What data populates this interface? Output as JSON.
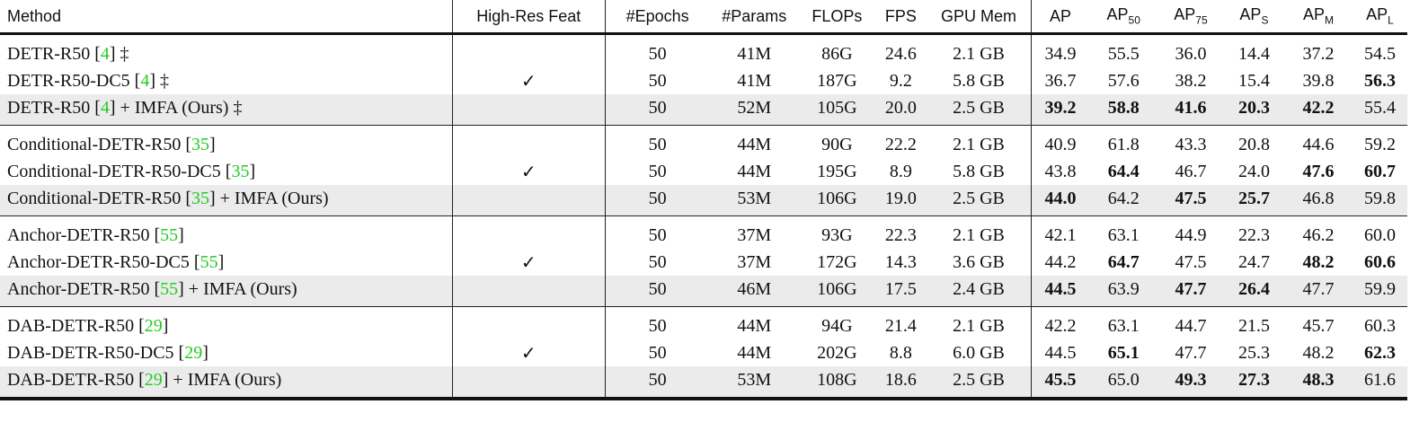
{
  "headers": [
    "Method",
    "High-Res Feat",
    "#Epochs",
    "#Params",
    "FLOPs",
    "FPS",
    "GPU Mem",
    "AP",
    [
      "AP",
      "50"
    ],
    [
      "AP",
      "75"
    ],
    [
      "AP",
      "S"
    ],
    [
      "AP",
      "M"
    ],
    [
      "AP",
      "L"
    ]
  ],
  "ref_color": "#22cc22",
  "groups": [
    [
      {
        "name": "DETR-R50 [",
        "ref": "4",
        "suffix": "] ‡",
        "highres": "",
        "shaded": false,
        "values": [
          "50",
          "41M",
          "86G",
          "24.6",
          "2.1 GB",
          "34.9",
          "55.5",
          "36.0",
          "14.4",
          "37.2",
          "54.5"
        ],
        "bold": []
      },
      {
        "name": "DETR-R50-DC5 [",
        "ref": "4",
        "suffix": "] ‡",
        "highres": "✓",
        "shaded": false,
        "values": [
          "50",
          "41M",
          "187G",
          "9.2",
          "5.8 GB",
          "36.7",
          "57.6",
          "38.2",
          "15.4",
          "39.8",
          "56.3"
        ],
        "bold": [
          10
        ]
      },
      {
        "name": "DETR-R50 [",
        "ref": "4",
        "suffix": "] + IMFA (Ours) ‡",
        "highres": "",
        "shaded": true,
        "values": [
          "50",
          "52M",
          "105G",
          "20.0",
          "2.5 GB",
          "39.2",
          "58.8",
          "41.6",
          "20.3",
          "42.2",
          "55.4"
        ],
        "bold": [
          5,
          6,
          7,
          8,
          9
        ]
      }
    ],
    [
      {
        "name": "Conditional-DETR-R50 [",
        "ref": "35",
        "suffix": "]",
        "highres": "",
        "shaded": false,
        "values": [
          "50",
          "44M",
          "90G",
          "22.2",
          "2.1 GB",
          "40.9",
          "61.8",
          "43.3",
          "20.8",
          "44.6",
          "59.2"
        ],
        "bold": []
      },
      {
        "name": "Conditional-DETR-R50-DC5 [",
        "ref": "35",
        "suffix": "]",
        "highres": "✓",
        "shaded": false,
        "values": [
          "50",
          "44M",
          "195G",
          "8.9",
          "5.8 GB",
          "43.8",
          "64.4",
          "46.7",
          "24.0",
          "47.6",
          "60.7"
        ],
        "bold": [
          6,
          9,
          10
        ]
      },
      {
        "name": "Conditional-DETR-R50  [",
        "ref": "35",
        "suffix": "] + IMFA (Ours)",
        "highres": "",
        "shaded": true,
        "values": [
          "50",
          "53M",
          "106G",
          "19.0",
          "2.5 GB",
          "44.0",
          "64.2",
          "47.5",
          "25.7",
          "46.8",
          "59.8"
        ],
        "bold": [
          5,
          7,
          8
        ]
      }
    ],
    [
      {
        "name": "Anchor-DETR-R50 [",
        "ref": "55",
        "suffix": "]",
        "highres": "",
        "shaded": false,
        "values": [
          "50",
          "37M",
          "93G",
          "22.3",
          "2.1 GB",
          "42.1",
          "63.1",
          "44.9",
          "22.3",
          "46.2",
          "60.0"
        ],
        "bold": []
      },
      {
        "name": "Anchor-DETR-R50-DC5 [",
        "ref": "55",
        "suffix": "]",
        "highres": "✓",
        "shaded": false,
        "values": [
          "50",
          "37M",
          "172G",
          "14.3",
          "3.6 GB",
          "44.2",
          "64.7",
          "47.5",
          "24.7",
          "48.2",
          "60.6"
        ],
        "bold": [
          6,
          9,
          10
        ]
      },
      {
        "name": "Anchor-DETR-R50 [",
        "ref": "55",
        "suffix": "] + IMFA (Ours)",
        "highres": "",
        "shaded": true,
        "values": [
          "50",
          "46M",
          "106G",
          "17.5",
          "2.4 GB",
          "44.5",
          "63.9",
          "47.7",
          "26.4",
          "47.7",
          "59.9"
        ],
        "bold": [
          5,
          7,
          8
        ]
      }
    ],
    [
      {
        "name": "DAB-DETR-R50 [",
        "ref": "29",
        "suffix": "]",
        "highres": "",
        "shaded": false,
        "values": [
          "50",
          "44M",
          "94G",
          "21.4",
          "2.1 GB",
          "42.2",
          "63.1",
          "44.7",
          "21.5",
          "45.7",
          "60.3"
        ],
        "bold": []
      },
      {
        "name": "DAB-DETR-R50-DC5 [",
        "ref": "29",
        "suffix": "]",
        "highres": "✓",
        "shaded": false,
        "values": [
          "50",
          "44M",
          "202G",
          "8.8",
          "6.0 GB",
          "44.5",
          "65.1",
          "47.7",
          "25.3",
          "48.2",
          "62.3"
        ],
        "bold": [
          6,
          10
        ]
      },
      {
        "name": "DAB-DETR-R50 [",
        "ref": "29",
        "suffix": "] + IMFA (Ours)",
        "highres": "",
        "shaded": true,
        "values": [
          "50",
          "53M",
          "108G",
          "18.6",
          "2.5 GB",
          "45.5",
          "65.0",
          "49.3",
          "27.3",
          "48.3",
          "61.6"
        ],
        "bold": [
          5,
          7,
          8,
          9
        ]
      }
    ]
  ]
}
